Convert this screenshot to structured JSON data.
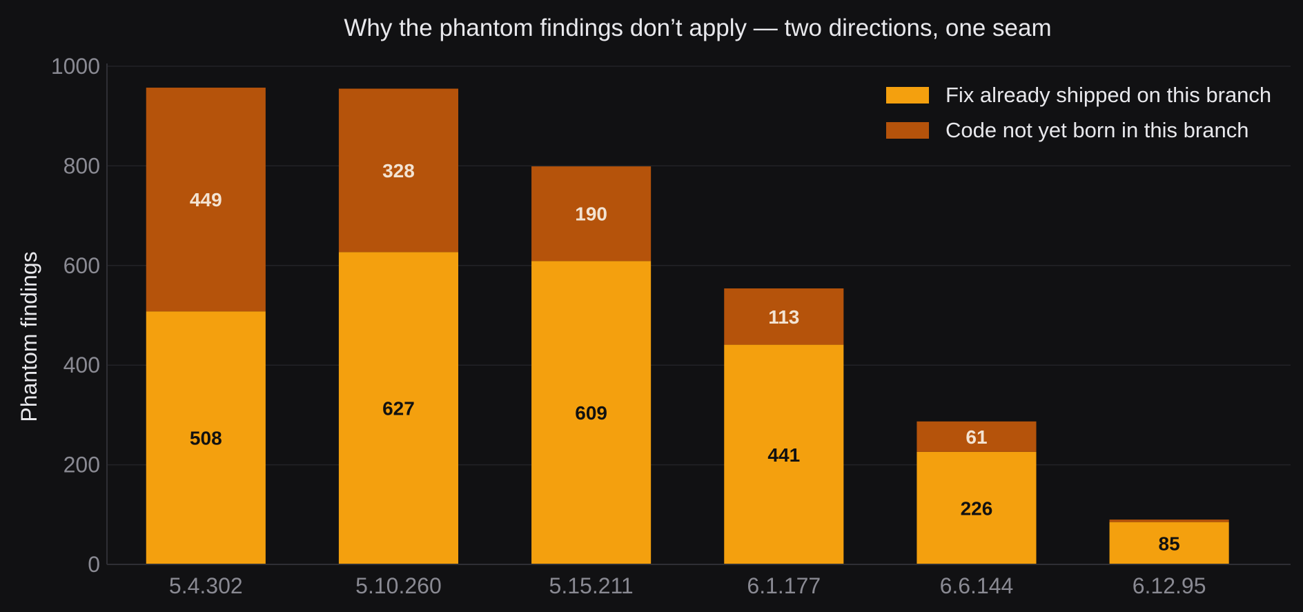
{
  "chart_data": {
    "type": "bar",
    "stacked": true,
    "title": "Why the phantom findings don’t apply — two directions, one seam",
    "xlabel": "",
    "ylabel": "Phantom findings",
    "categories": [
      "5.4.302",
      "5.10.260",
      "5.15.211",
      "6.1.177",
      "6.6.144",
      "6.12.95"
    ],
    "series": [
      {
        "name": "Fix already shipped on this branch",
        "values": [
          508,
          627,
          609,
          441,
          226,
          85
        ],
        "color": "#f4a00e",
        "label_color": "#111111"
      },
      {
        "name": "Code not yet born in this branch",
        "values": [
          449,
          328,
          190,
          113,
          61,
          5
        ],
        "color": "#b5530b",
        "label_color": "#f3e3d2"
      }
    ],
    "ylim": [
      0,
      1000
    ],
    "yticks": [
      0,
      200,
      400,
      600,
      800,
      1000
    ],
    "grid": true,
    "legend_position": "top-right",
    "background": "#111113"
  }
}
